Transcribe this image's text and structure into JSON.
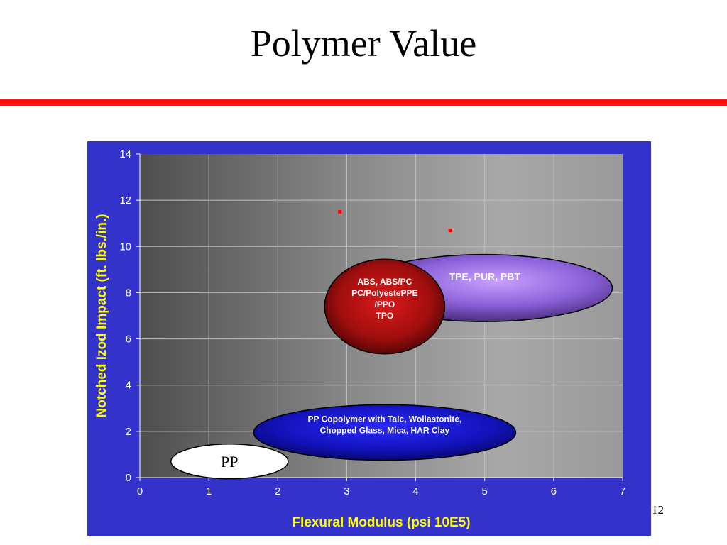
{
  "slide": {
    "title": "Polymer Value",
    "page_number": "12"
  },
  "colors": {
    "rule": "#ff1010",
    "chart_background": "#3333cc",
    "axis_title": "#ffff00",
    "tick_label": "#ffffff",
    "marker": "#ff0000"
  },
  "chart_data": {
    "type": "scatter",
    "xlabel": "Flexural Modulus (psi 10E5)",
    "ylabel": "Notched Izod Impact (ft. lbs./in.)",
    "xlim": [
      0,
      7
    ],
    "ylim": [
      0,
      14
    ],
    "xticks": [
      "0",
      "1",
      "2",
      "3",
      "4",
      "5",
      "6",
      "7"
    ],
    "yticks": [
      "0",
      "2",
      "4",
      "6",
      "8",
      "10",
      "12",
      "14"
    ],
    "grid": true,
    "points": [
      {
        "x": 2.9,
        "y": 11.5
      },
      {
        "x": 4.5,
        "y": 10.7
      }
    ],
    "regions": [
      {
        "label": "PP",
        "center": [
          1.3,
          0.7
        ],
        "radius": [
          0.85,
          0.75
        ],
        "fill": "#ffffff",
        "text_color": "#000000"
      },
      {
        "label": "PP Copolymer with Talc, Wollastonite, Chopped Glass, Mica, HAR Clay",
        "center": [
          3.55,
          1.95
        ],
        "radius": [
          1.9,
          1.2
        ],
        "fill": "#1a1acc",
        "text_color": "#ffffff"
      },
      {
        "label": "TPE, PUR, PBT",
        "center": [
          5.0,
          8.2
        ],
        "radius": [
          1.85,
          1.45
        ],
        "fill": "#9966dd",
        "text_color": "#ffffff"
      },
      {
        "label": "ABS, ABS/PC PC/PolyestePPE /PPO TPO",
        "center": [
          3.55,
          7.4
        ],
        "radius": [
          0.87,
          2.05
        ],
        "fill": "#bb1010",
        "text_color": "#ffffff"
      }
    ]
  }
}
